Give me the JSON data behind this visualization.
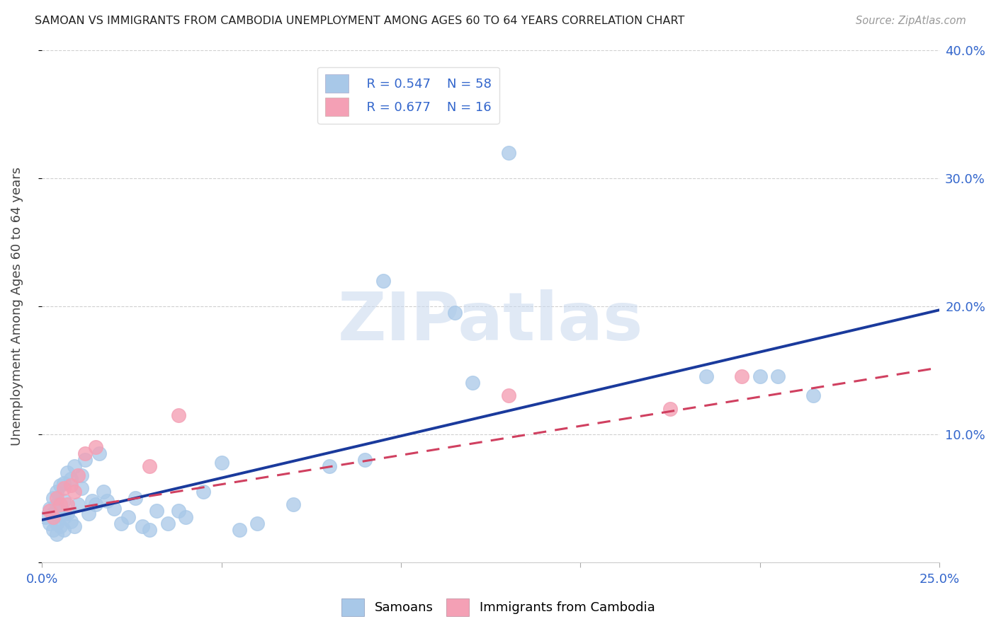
{
  "title": "SAMOAN VS IMMIGRANTS FROM CAMBODIA UNEMPLOYMENT AMONG AGES 60 TO 64 YEARS CORRELATION CHART",
  "source": "Source: ZipAtlas.com",
  "ylabel": "Unemployment Among Ages 60 to 64 years",
  "xlim": [
    0.0,
    0.25
  ],
  "ylim": [
    0.0,
    0.4
  ],
  "xticks": [
    0.0,
    0.05,
    0.1,
    0.15,
    0.2,
    0.25
  ],
  "yticks": [
    0.0,
    0.1,
    0.2,
    0.3,
    0.4
  ],
  "xticklabels": [
    "0.0%",
    "",
    "",
    "",
    "",
    "25.0%"
  ],
  "yticklabels": [
    "",
    "10.0%",
    "20.0%",
    "30.0%",
    "40.0%"
  ],
  "samoan_color": "#a8c8e8",
  "cambodia_color": "#f4a0b5",
  "samoan_line_color": "#1a3a9c",
  "cambodia_line_color": "#d04060",
  "legend_r_samoan": "R = 0.547",
  "legend_n_samoan": "N = 58",
  "legend_r_cambodia": "R = 0.677",
  "legend_n_cambodia": "N = 16",
  "samoan_line_x0": 0.0,
  "samoan_line_y0": 0.033,
  "samoan_line_x1": 0.25,
  "samoan_line_y1": 0.197,
  "cambodia_line_x0": 0.0,
  "cambodia_line_y0": 0.038,
  "cambodia_line_x1": 0.25,
  "cambodia_line_y1": 0.152,
  "samoan_x": [
    0.001,
    0.002,
    0.002,
    0.003,
    0.003,
    0.003,
    0.004,
    0.004,
    0.004,
    0.004,
    0.005,
    0.005,
    0.005,
    0.006,
    0.006,
    0.006,
    0.006,
    0.007,
    0.007,
    0.008,
    0.008,
    0.009,
    0.009,
    0.01,
    0.011,
    0.011,
    0.012,
    0.013,
    0.014,
    0.015,
    0.016,
    0.017,
    0.018,
    0.02,
    0.022,
    0.024,
    0.026,
    0.028,
    0.03,
    0.032,
    0.035,
    0.038,
    0.04,
    0.045,
    0.05,
    0.055,
    0.06,
    0.07,
    0.08,
    0.09,
    0.095,
    0.115,
    0.12,
    0.13,
    0.185,
    0.2,
    0.205,
    0.215
  ],
  "samoan_y": [
    0.035,
    0.03,
    0.042,
    0.025,
    0.038,
    0.05,
    0.03,
    0.022,
    0.045,
    0.055,
    0.028,
    0.04,
    0.06,
    0.035,
    0.025,
    0.048,
    0.062,
    0.07,
    0.038,
    0.032,
    0.065,
    0.028,
    0.075,
    0.045,
    0.058,
    0.068,
    0.08,
    0.038,
    0.048,
    0.045,
    0.085,
    0.055,
    0.048,
    0.042,
    0.03,
    0.035,
    0.05,
    0.028,
    0.025,
    0.04,
    0.03,
    0.04,
    0.035,
    0.055,
    0.078,
    0.025,
    0.03,
    0.045,
    0.075,
    0.08,
    0.22,
    0.195,
    0.14,
    0.32,
    0.145,
    0.145,
    0.145,
    0.13
  ],
  "cambodia_x": [
    0.002,
    0.003,
    0.004,
    0.005,
    0.006,
    0.007,
    0.008,
    0.009,
    0.01,
    0.012,
    0.015,
    0.03,
    0.038,
    0.13,
    0.175,
    0.195
  ],
  "cambodia_y": [
    0.04,
    0.035,
    0.05,
    0.045,
    0.058,
    0.045,
    0.06,
    0.055,
    0.068,
    0.085,
    0.09,
    0.075,
    0.115,
    0.13,
    0.12,
    0.145
  ],
  "watermark": "ZIPatlas",
  "background_color": "#ffffff",
  "grid_color": "#d0d0d0"
}
